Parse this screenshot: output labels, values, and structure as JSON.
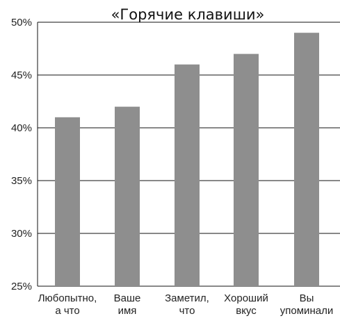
{
  "chart_data": {
    "type": "bar",
    "title": "«Горячие клавиши»",
    "xlabel": "",
    "ylabel": "",
    "categories": [
      [
        "Любопытно,",
        "а что"
      ],
      [
        "Ваше",
        "имя"
      ],
      [
        "Заметил,",
        "что"
      ],
      [
        "Хороший",
        "вкус"
      ],
      [
        "Вы",
        "упоминали"
      ]
    ],
    "values": [
      41,
      42,
      46,
      47,
      49
    ],
    "ylim": [
      25,
      50
    ],
    "yticks": [
      25,
      30,
      35,
      40,
      45,
      50
    ],
    "ytick_labels": [
      "25%",
      "30%",
      "35%",
      "40%",
      "45%",
      "50%"
    ],
    "grid": true,
    "bar_color": "#8e8e8e"
  }
}
